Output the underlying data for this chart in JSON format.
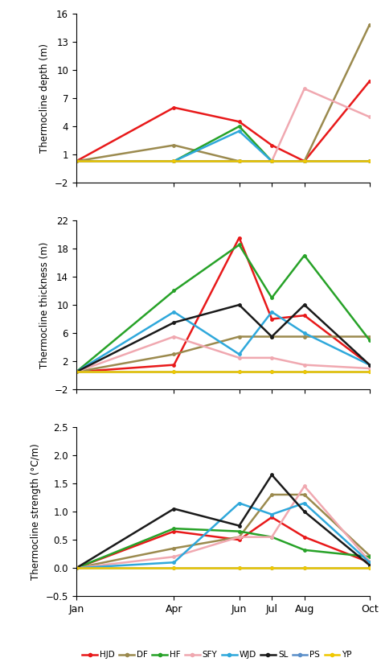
{
  "x_labels": [
    "Jan",
    "Apr",
    "Jun",
    "Jul",
    "Aug",
    "Oct"
  ],
  "x_positions": [
    1,
    4,
    6,
    7,
    8,
    10
  ],
  "colors": {
    "HJD": "#e8191a",
    "DF": "#9b8a4e",
    "HF": "#27a228",
    "SFY": "#f0a8b0",
    "WJD": "#2fa8db",
    "SL": "#1a1a1a",
    "PS": "#5b8fc9",
    "YP": "#f0c800"
  },
  "series_order": [
    "HJD",
    "DF",
    "HF",
    "SFY",
    "WJD",
    "SL",
    "PS",
    "YP"
  ],
  "depth": {
    "HJD": [
      0.3,
      6.0,
      4.5,
      2.0,
      0.3,
      8.8
    ],
    "DF": [
      0.3,
      2.0,
      0.3,
      0.3,
      0.3,
      14.8
    ],
    "HF": [
      0.3,
      0.3,
      4.0,
      0.3,
      0.3,
      0.3
    ],
    "SFY": [
      0.3,
      0.3,
      0.3,
      0.3,
      8.0,
      5.0
    ],
    "WJD": [
      0.3,
      0.3,
      3.5,
      0.3,
      0.3,
      0.3
    ],
    "SL": [
      0.3,
      0.3,
      0.3,
      0.3,
      0.3,
      0.3
    ],
    "PS": [
      0.3,
      0.3,
      0.3,
      0.3,
      0.3,
      0.3
    ],
    "YP": [
      0.3,
      0.3,
      0.3,
      0.3,
      0.3,
      0.3
    ]
  },
  "thickness": {
    "HJD": [
      0.5,
      1.5,
      19.5,
      8.0,
      8.5,
      1.5
    ],
    "DF": [
      0.5,
      3.0,
      5.5,
      5.5,
      5.5,
      5.5
    ],
    "HF": [
      0.5,
      12.0,
      18.5,
      11.0,
      17.0,
      5.0
    ],
    "SFY": [
      0.5,
      5.5,
      2.5,
      2.5,
      1.5,
      1.0
    ],
    "WJD": [
      0.5,
      9.0,
      3.0,
      9.0,
      6.0,
      1.5
    ],
    "SL": [
      0.5,
      7.5,
      10.0,
      5.5,
      10.0,
      1.5
    ],
    "PS": [
      0.5,
      0.5,
      0.5,
      0.5,
      0.5,
      0.5
    ],
    "YP": [
      0.5,
      0.5,
      0.5,
      0.5,
      0.5,
      0.5
    ]
  },
  "strength": {
    "HJD": [
      0.0,
      0.65,
      0.5,
      0.9,
      0.55,
      0.1
    ],
    "DF": [
      0.0,
      0.35,
      0.55,
      1.3,
      1.3,
      0.22
    ],
    "HF": [
      0.0,
      0.7,
      0.65,
      0.55,
      0.32,
      0.2
    ],
    "SFY": [
      0.0,
      0.2,
      0.55,
      0.55,
      1.45,
      0.12
    ],
    "WJD": [
      0.0,
      0.1,
      1.15,
      0.95,
      1.15,
      0.1
    ],
    "SL": [
      0.0,
      1.05,
      0.75,
      1.65,
      1.0,
      0.05
    ],
    "PS": [
      0.0,
      0.0,
      0.0,
      0.0,
      0.0,
      0.0
    ],
    "YP": [
      0.0,
      0.0,
      0.0,
      0.0,
      0.0,
      0.0
    ]
  },
  "panel1": {
    "ylabel": "Thermocline depth (m)",
    "ylim": [
      -2,
      16
    ],
    "yticks": [
      -2,
      1,
      4,
      7,
      10,
      13,
      16
    ]
  },
  "panel2": {
    "ylabel": "Thermocline thickness (m)",
    "ylim": [
      -2,
      22
    ],
    "yticks": [
      -2,
      2,
      6,
      10,
      14,
      18,
      22
    ]
  },
  "panel3": {
    "ylabel": "Thermocline strength (°C/m)",
    "ylim": [
      -0.5,
      2.5
    ],
    "yticks": [
      -0.5,
      0.0,
      0.5,
      1.0,
      1.5,
      2.0,
      2.5
    ]
  }
}
